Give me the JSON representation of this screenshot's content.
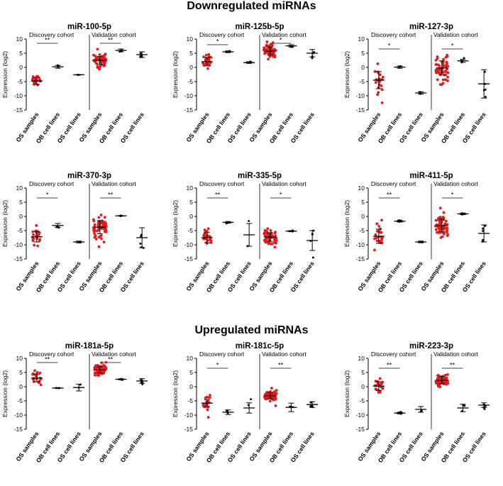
{
  "section_titles": {
    "down": "Downregulated miRNAs",
    "up": "Upregulated miRNAs"
  },
  "colors": {
    "sample_point": "#e31a1c",
    "line_point": "#111111",
    "axis": "#000000"
  },
  "chart_data": [
    {
      "type": "scatter",
      "title": "miR-100-5p",
      "ylabel": "Expression (log2)",
      "ylim": [
        -15,
        10
      ],
      "yticks": [
        10,
        5,
        0,
        -5,
        -10,
        -15
      ],
      "cohort_labels": [
        "Discovery cohort",
        "Validation cohort"
      ],
      "categories": [
        "OS samples",
        "OB cell lines",
        "OS cell lines",
        "OS samples",
        "OB cell lines",
        "OS cell lines"
      ],
      "groups": [
        {
          "center": -4.8,
          "sd": 1.2,
          "n": 22,
          "color": "red"
        },
        {
          "center": 0.2,
          "sd": 0.5,
          "n": 3,
          "color": "black"
        },
        {
          "center": -2.6,
          "sd": 0.1,
          "n": 2,
          "color": "black"
        },
        {
          "center": 2.5,
          "sd": 1.4,
          "n": 60,
          "color": "red"
        },
        {
          "center": 6.0,
          "sd": 0.5,
          "n": 3,
          "color": "black"
        },
        {
          "center": 4.5,
          "sd": 1.0,
          "n": 5,
          "color": "black"
        }
      ],
      "significance": [
        {
          "from": 0,
          "to": 1,
          "label": "**",
          "y": 8.5
        },
        {
          "from": 3,
          "to": 4,
          "label": "**",
          "y": 8.5
        }
      ]
    },
    {
      "type": "scatter",
      "title": "miR-125b-5p",
      "ylabel": "Expression (log2)",
      "ylim": [
        -15,
        10
      ],
      "yticks": [
        10,
        5,
        0,
        -5,
        -10,
        -15
      ],
      "cohort_labels": [
        "Discovery cohort",
        "Validation cohort"
      ],
      "categories": [
        "OS samples",
        "OB cell lines",
        "OS cell lines",
        "OS samples",
        "OB cell lines",
        "OS cell lines"
      ],
      "groups": [
        {
          "center": 2.0,
          "sd": 1.5,
          "n": 22,
          "color": "red"
        },
        {
          "center": 5.5,
          "sd": 0.3,
          "n": 3,
          "color": "black"
        },
        {
          "center": 1.7,
          "sd": 0.3,
          "n": 2,
          "color": "black"
        },
        {
          "center": 5.8,
          "sd": 1.4,
          "n": 60,
          "color": "red"
        },
        {
          "center": 7.6,
          "sd": 0.4,
          "n": 3,
          "color": "black"
        },
        {
          "center": 5.0,
          "sd": 1.3,
          "n": 5,
          "color": "black"
        }
      ],
      "significance": [
        {
          "from": 0,
          "to": 1,
          "label": "*",
          "y": 8.0
        },
        {
          "from": 3,
          "to": 4,
          "label": "*",
          "y": 8.5
        }
      ]
    },
    {
      "type": "scatter",
      "title": "miR-127-3p",
      "ylabel": "Expression (log2)",
      "ylim": [
        -15,
        10
      ],
      "yticks": [
        10,
        5,
        0,
        -5,
        -10,
        -15
      ],
      "cohort_labels": [
        "Discovery cohort",
        "Validation cohort"
      ],
      "categories": [
        "OS samples",
        "OB cell lines",
        "OS cell lines",
        "OS samples",
        "OB cell lines",
        "OS cell lines"
      ],
      "groups": [
        {
          "center": -4.5,
          "sd": 3.0,
          "n": 22,
          "color": "red"
        },
        {
          "center": 0.1,
          "sd": 0.4,
          "n": 3,
          "color": "black"
        },
        {
          "center": -9.0,
          "sd": 0.4,
          "n": 2,
          "color": "black"
        },
        {
          "center": -0.2,
          "sd": 2.5,
          "n": 60,
          "color": "red"
        },
        {
          "center": 2.3,
          "sd": 0.5,
          "n": 3,
          "color": "black"
        },
        {
          "center": -5.8,
          "sd": 5.0,
          "n": 5,
          "color": "black"
        }
      ],
      "significance": [
        {
          "from": 0,
          "to": 1,
          "label": "*",
          "y": 6.5
        },
        {
          "from": 3,
          "to": 4,
          "label": "*",
          "y": 6.5
        }
      ]
    },
    {
      "type": "scatter",
      "title": "miR-370-3p",
      "ylabel": "Expression (log2)",
      "ylim": [
        -15,
        10
      ],
      "yticks": [
        10,
        5,
        0,
        -5,
        -10,
        -15
      ],
      "cohort_labels": [
        "Discovery cohort",
        "Validation cohort"
      ],
      "categories": [
        "OS samples",
        "OB cell lines",
        "OS cell lines",
        "OS samples",
        "OB cell lines",
        "OS cell lines"
      ],
      "groups": [
        {
          "center": -7.2,
          "sd": 1.8,
          "n": 22,
          "color": "red"
        },
        {
          "center": -3.2,
          "sd": 0.7,
          "n": 3,
          "color": "black"
        },
        {
          "center": -9.0,
          "sd": 0.3,
          "n": 2,
          "color": "black"
        },
        {
          "center": -3.8,
          "sd": 2.3,
          "n": 60,
          "color": "red"
        },
        {
          "center": 0.2,
          "sd": 0.1,
          "n": 3,
          "color": "black"
        },
        {
          "center": -7.5,
          "sd": 3.5,
          "n": 5,
          "color": "black"
        }
      ],
      "significance": [
        {
          "from": 0,
          "to": 1,
          "label": "*",
          "y": 6.5
        },
        {
          "from": 3,
          "to": 4,
          "label": "**",
          "y": 6.5
        }
      ]
    },
    {
      "type": "scatter",
      "title": "miR-335-5p",
      "ylabel": "Expression (log2)",
      "ylim": [
        -15,
        10
      ],
      "yticks": [
        10,
        5,
        0,
        -5,
        -10,
        -15
      ],
      "cohort_labels": [
        "Discovery cohort",
        "Validation cohort"
      ],
      "categories": [
        "OS samples",
        "OB cell lines",
        "OS cell lines",
        "OS samples",
        "OB cell lines",
        "OS cell lines"
      ],
      "groups": [
        {
          "center": -7.5,
          "sd": 1.8,
          "n": 22,
          "color": "red"
        },
        {
          "center": -2.1,
          "sd": 0.3,
          "n": 3,
          "color": "black"
        },
        {
          "center": -6.5,
          "sd": 4.0,
          "n": 2,
          "color": "black"
        },
        {
          "center": -7.3,
          "sd": 1.5,
          "n": 60,
          "color": "red"
        },
        {
          "center": -5.2,
          "sd": 0.2,
          "n": 3,
          "color": "black"
        },
        {
          "center": -8.5,
          "sd": 3.5,
          "n": 5,
          "color": "black"
        }
      ],
      "significance": [
        {
          "from": 0,
          "to": 1,
          "label": "**",
          "y": 6.5
        },
        {
          "from": 3,
          "to": 4,
          "label": "*",
          "y": 6.5
        }
      ]
    },
    {
      "type": "scatter",
      "title": "miR-411-5p",
      "ylabel": "Expression (log2)",
      "ylim": [
        -15,
        10
      ],
      "yticks": [
        10,
        5,
        0,
        -5,
        -10,
        -15
      ],
      "cohort_labels": [
        "Discovery cohort",
        "Validation cohort"
      ],
      "categories": [
        "OS samples",
        "OB cell lines",
        "OS cell lines",
        "OS samples",
        "OB cell lines",
        "OS cell lines"
      ],
      "groups": [
        {
          "center": -7.0,
          "sd": 2.5,
          "n": 22,
          "color": "red"
        },
        {
          "center": -1.7,
          "sd": 0.3,
          "n": 3,
          "color": "black"
        },
        {
          "center": -9.0,
          "sd": 0.3,
          "n": 2,
          "color": "black"
        },
        {
          "center": -3.2,
          "sd": 2.2,
          "n": 60,
          "color": "red"
        },
        {
          "center": 0.9,
          "sd": 0.3,
          "n": 3,
          "color": "black"
        },
        {
          "center": -6.0,
          "sd": 3.0,
          "n": 5,
          "color": "black"
        }
      ],
      "significance": [
        {
          "from": 0,
          "to": 1,
          "label": "**",
          "y": 6.5
        },
        {
          "from": 3,
          "to": 4,
          "label": "*",
          "y": 6.5
        }
      ]
    },
    {
      "type": "scatter",
      "title": "miR-181a-5p",
      "ylabel": "Expression (log2)",
      "ylim": [
        -15,
        10
      ],
      "yticks": [
        10,
        5,
        0,
        -5,
        -10,
        -15
      ],
      "cohort_labels": [
        "Discovery cohort",
        "Validation cohort"
      ],
      "categories": [
        "OS samples",
        "OB cell lines",
        "OS cell lines",
        "OS samples",
        "OB cell lines",
        "OS cell lines"
      ],
      "groups": [
        {
          "center": 3.0,
          "sd": 1.3,
          "n": 22,
          "color": "red"
        },
        {
          "center": -0.5,
          "sd": 0.1,
          "n": 3,
          "color": "black"
        },
        {
          "center": -0.3,
          "sd": 1.2,
          "n": 2,
          "color": "black"
        },
        {
          "center": 5.9,
          "sd": 1.1,
          "n": 60,
          "color": "red"
        },
        {
          "center": 2.6,
          "sd": 0.2,
          "n": 3,
          "color": "black"
        },
        {
          "center": 2.0,
          "sd": 0.8,
          "n": 5,
          "color": "black"
        }
      ],
      "significance": [
        {
          "from": 0,
          "to": 1,
          "label": "**",
          "y": 8.5
        },
        {
          "from": 3,
          "to": 4,
          "label": "**",
          "y": 8.5
        }
      ]
    },
    {
      "type": "scatter",
      "title": "miR-181c-5p",
      "ylabel": "Expression (log2)",
      "ylim": [
        -15,
        10
      ],
      "yticks": [
        10,
        5,
        0,
        -5,
        -10,
        -15
      ],
      "cohort_labels": [
        "Discovery cohort",
        "Validation cohort"
      ],
      "categories": [
        "OS samples",
        "OB cell lines",
        "OS cell lines",
        "OS samples",
        "OB cell lines",
        "OS cell lines"
      ],
      "groups": [
        {
          "center": -5.8,
          "sd": 1.2,
          "n": 22,
          "color": "red"
        },
        {
          "center": -9.0,
          "sd": 0.8,
          "n": 3,
          "color": "black"
        },
        {
          "center": -7.5,
          "sd": 1.8,
          "n": 2,
          "color": "black"
        },
        {
          "center": -3.2,
          "sd": 1.1,
          "n": 60,
          "color": "red"
        },
        {
          "center": -7.3,
          "sd": 1.5,
          "n": 3,
          "color": "black"
        },
        {
          "center": -6.3,
          "sd": 1.0,
          "n": 5,
          "color": "black"
        }
      ],
      "significance": [
        {
          "from": 0,
          "to": 1,
          "label": "*",
          "y": 6.5
        },
        {
          "from": 3,
          "to": 4,
          "label": "**",
          "y": 6.5
        }
      ]
    },
    {
      "type": "scatter",
      "title": "miR-223-3p",
      "ylabel": "Expression (log2)",
      "ylim": [
        -15,
        10
      ],
      "yticks": [
        10,
        5,
        0,
        -5,
        -10,
        -15
      ],
      "cohort_labels": [
        "Discovery cohort",
        "Validation cohort"
      ],
      "categories": [
        "OS samples",
        "OB cell lines",
        "OS cell lines",
        "OS samples",
        "OB cell lines",
        "OS cell lines"
      ],
      "groups": [
        {
          "center": 0.2,
          "sd": 1.5,
          "n": 22,
          "color": "red"
        },
        {
          "center": -9.3,
          "sd": 0.3,
          "n": 3,
          "color": "black"
        },
        {
          "center": -8.0,
          "sd": 1.0,
          "n": 2,
          "color": "black"
        },
        {
          "center": 2.3,
          "sd": 1.3,
          "n": 60,
          "color": "red"
        },
        {
          "center": -7.5,
          "sd": 1.3,
          "n": 3,
          "color": "black"
        },
        {
          "center": -6.5,
          "sd": 0.8,
          "n": 5,
          "color": "black"
        }
      ],
      "significance": [
        {
          "from": 0,
          "to": 1,
          "label": "**",
          "y": 6.5
        },
        {
          "from": 3,
          "to": 4,
          "label": "**",
          "y": 6.5
        }
      ]
    }
  ]
}
